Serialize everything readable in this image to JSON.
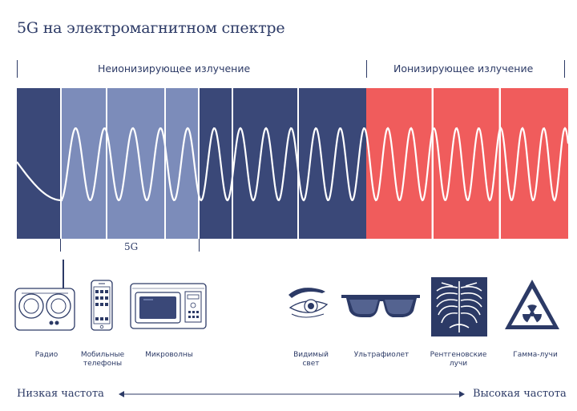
{
  "title": "5G на электромагнитном спектре",
  "regions": {
    "non_ionizing": "Неионизирующее излучение",
    "ionizing": "Ионизирующее излучение"
  },
  "band_label": "5G",
  "items": [
    {
      "key": "radio",
      "label": "Радио"
    },
    {
      "key": "mobile",
      "label": "Мобильные телефоны"
    },
    {
      "key": "microwave",
      "label": "Микроволны"
    },
    {
      "key": "visible",
      "label": "Видимый свет"
    },
    {
      "key": "uv",
      "label": "Ультрафиолет"
    },
    {
      "key": "xray",
      "label": "Рентгеновские лучи"
    },
    {
      "key": "gamma",
      "label": "Гамма-лучи"
    }
  ],
  "axis": {
    "low": "Низкая частота",
    "high": "Высокая частота"
  },
  "colors": {
    "dark_blue": "#3a4878",
    "light_blue": "#7c8cba",
    "red": "#f05c5c",
    "wave": "#ffffff",
    "text": "#2c3a66"
  }
}
